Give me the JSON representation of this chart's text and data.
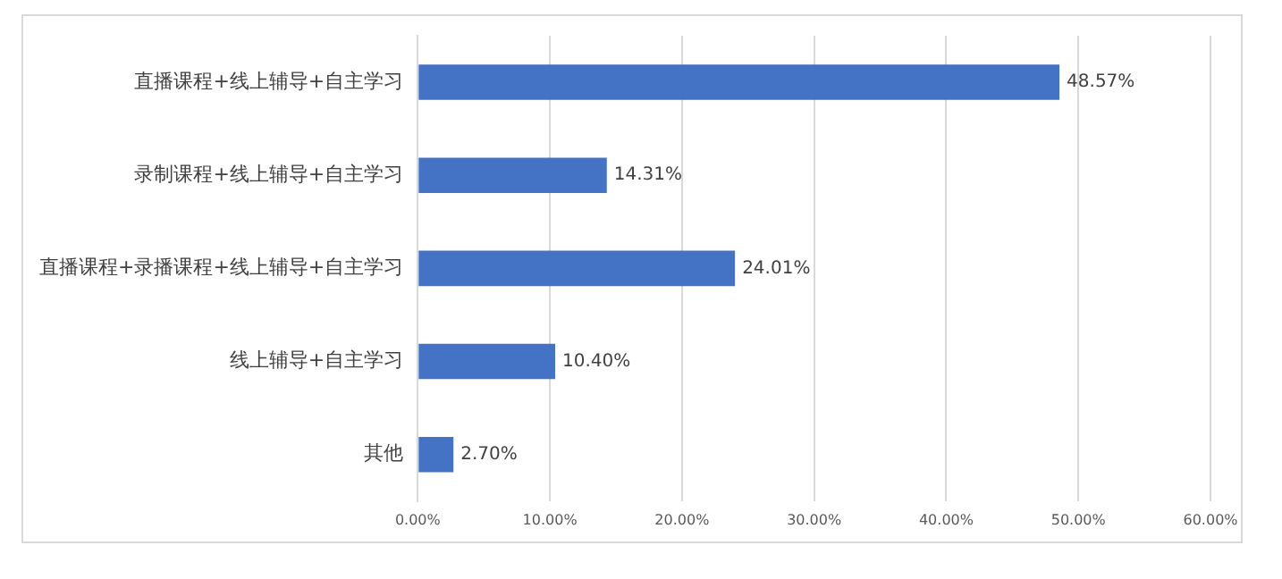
{
  "chart_data": {
    "type": "bar",
    "orientation": "horizontal",
    "categories": [
      "直播课程+线上辅导+自主学习",
      "录制课程+线上辅导+自主学习",
      "直播课程+录播课程+线上辅导+自主学习",
      "线上辅导+自主学习",
      "其他"
    ],
    "values": [
      48.57,
      14.31,
      24.01,
      10.4,
      2.7
    ],
    "value_labels": [
      "48.57%",
      "14.31%",
      "24.01%",
      "10.40%",
      "2.70%"
    ],
    "color": "#4472c4",
    "xlim": [
      0,
      60
    ],
    "xticks": [
      {
        "value": 0,
        "label": "0.00%"
      },
      {
        "value": 10,
        "label": "10.00%"
      },
      {
        "value": 20,
        "label": "20.00%"
      },
      {
        "value": 30,
        "label": "30.00%"
      },
      {
        "value": 40,
        "label": "40.00%"
      },
      {
        "value": 50,
        "label": "50.00%"
      },
      {
        "value": 60,
        "label": "60.00%"
      }
    ],
    "grid": "x",
    "legend": false
  }
}
